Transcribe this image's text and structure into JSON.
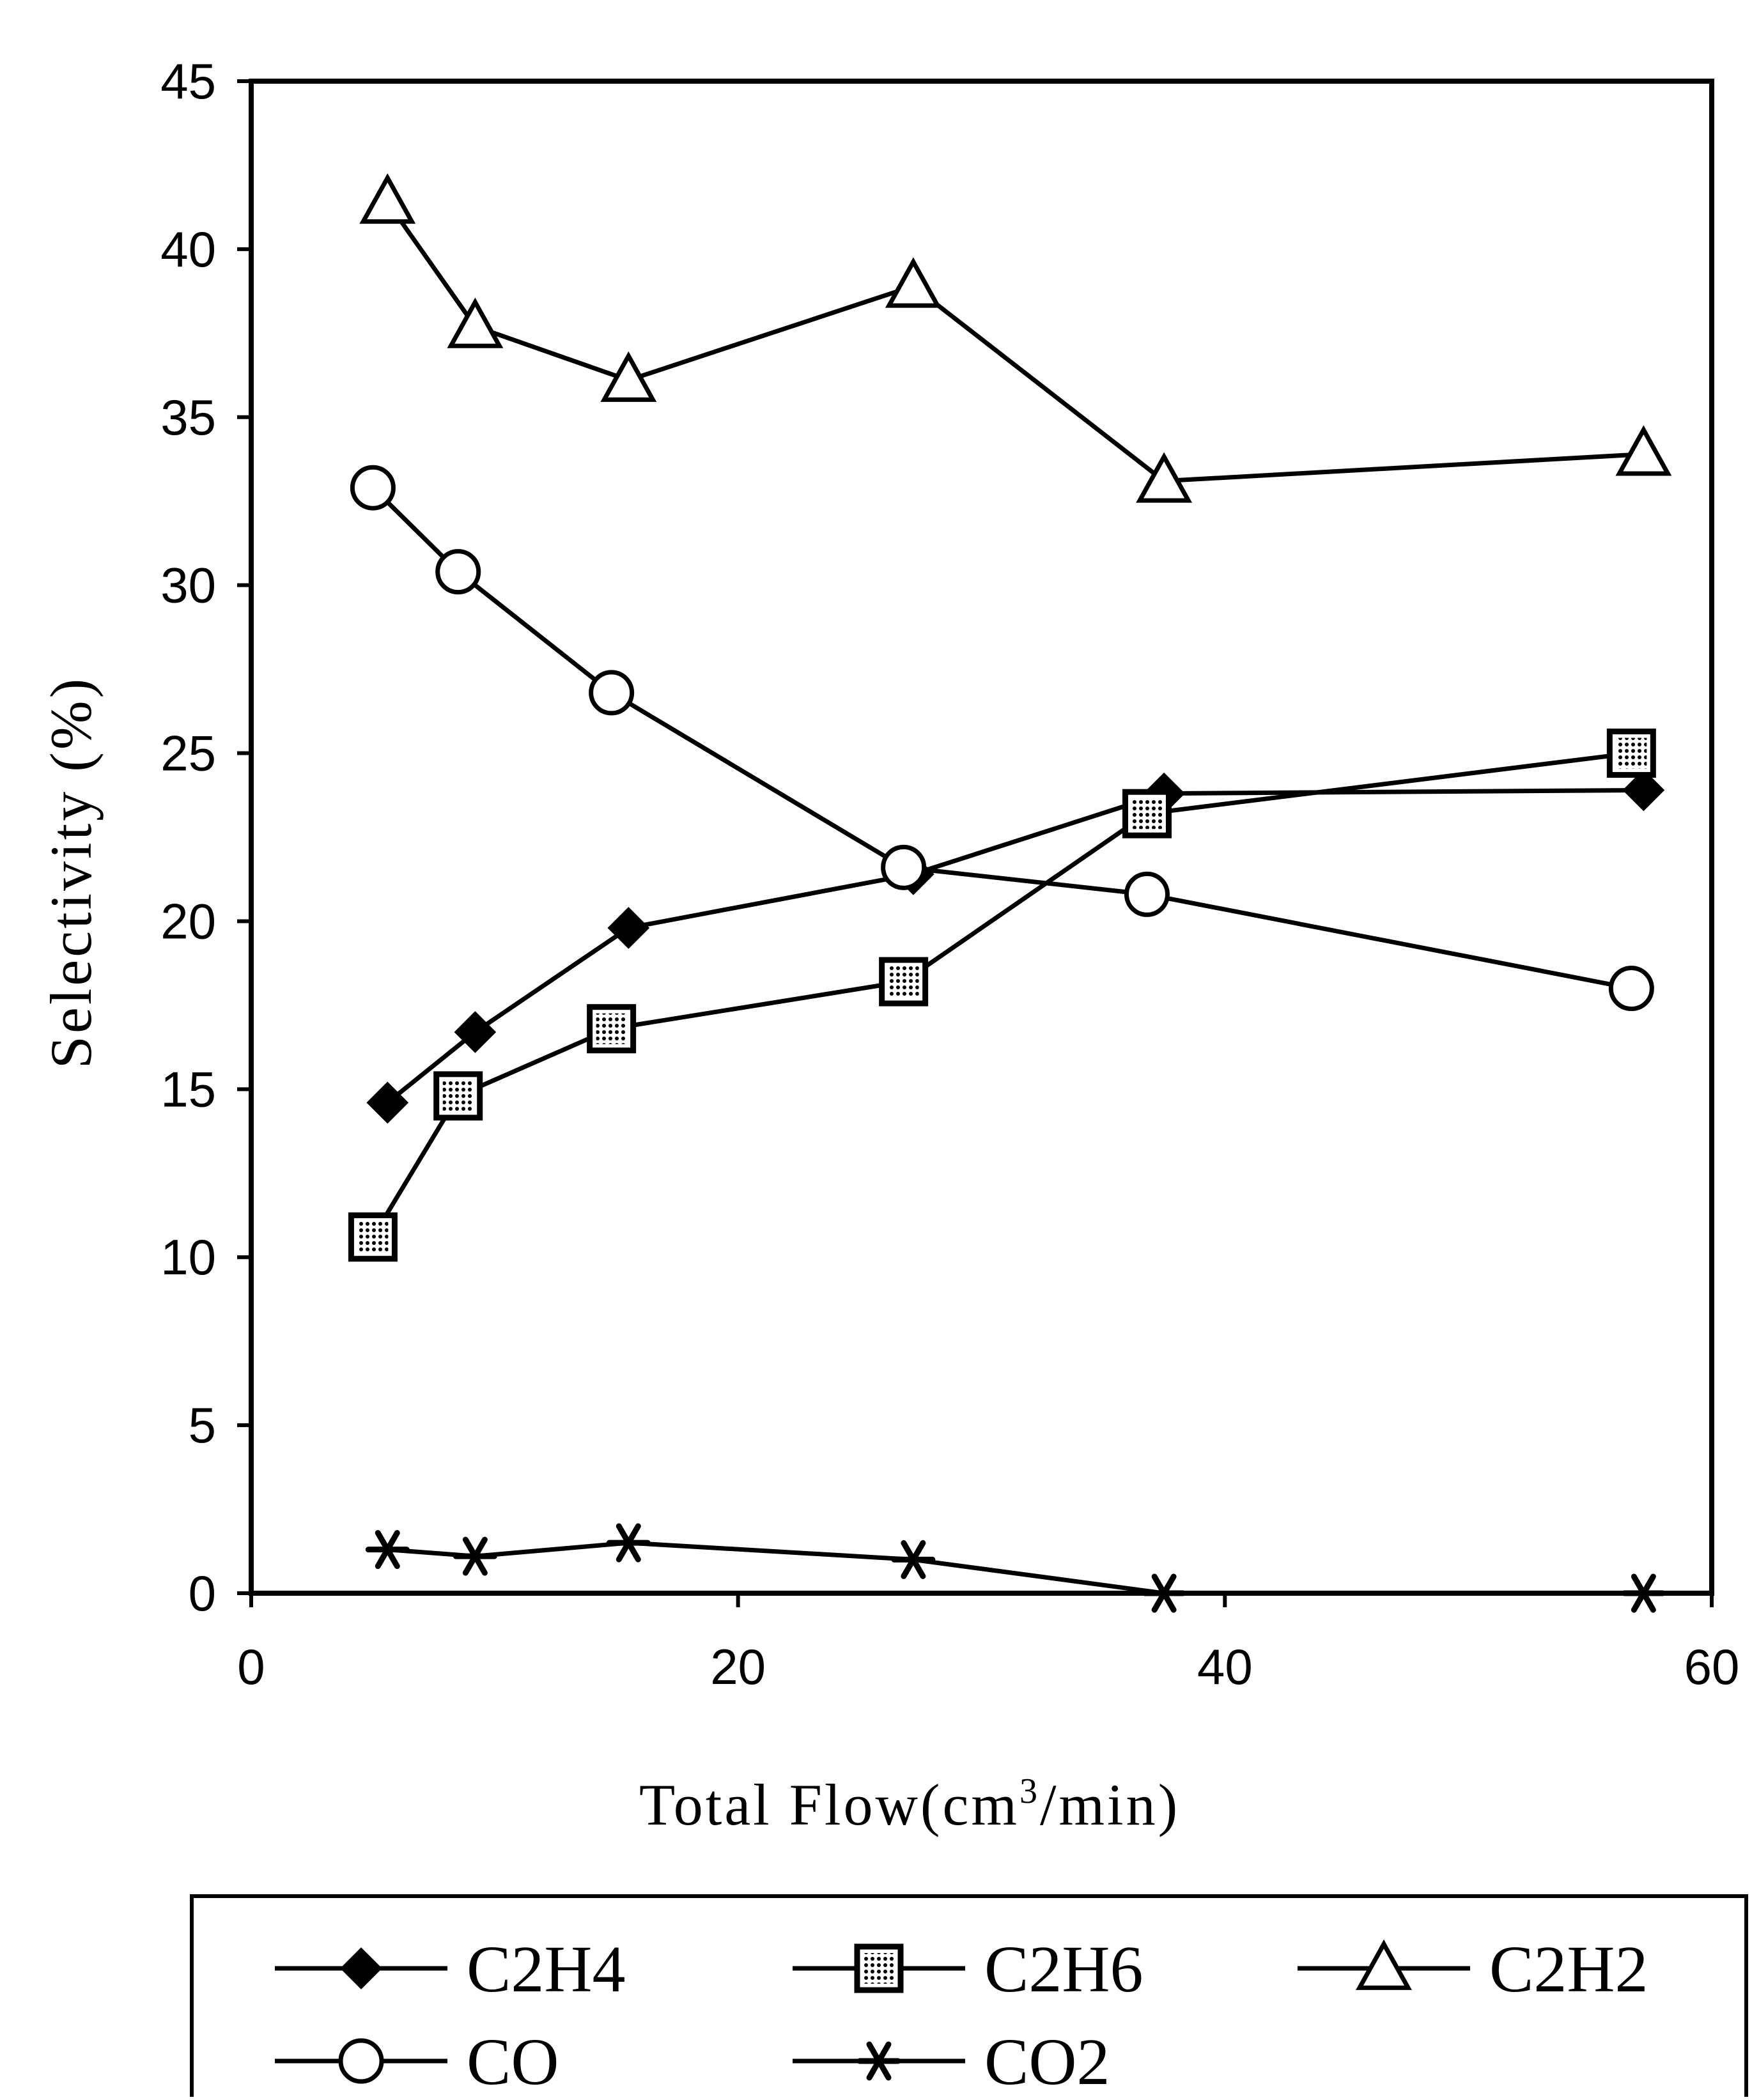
{
  "chart_data": {
    "type": "line",
    "title": "",
    "xlabel_main": "Total  Flow",
    "xlabel_unit_prefix": "(cm",
    "xlabel_unit_sup": "3",
    "xlabel_unit_suffix": "/min)",
    "ylabel": "Selectivity (%)",
    "xlim": [
      0,
      60
    ],
    "ylim": [
      0,
      45
    ],
    "x_ticks": [
      0,
      20,
      40,
      60
    ],
    "y_ticks": [
      0,
      5,
      10,
      15,
      20,
      25,
      30,
      35,
      40,
      45
    ],
    "x_tick_labels": [
      "0",
      "20",
      "40",
      "60"
    ],
    "y_tick_labels": [
      "0",
      "5",
      "10",
      "15",
      "20",
      "25",
      "30",
      "35",
      "40",
      "45"
    ],
    "grid": false,
    "legend_position": "bottom",
    "series": [
      {
        "name": "C2H4",
        "marker": "filled-diamond",
        "x": [
          5.6,
          9.2,
          15.5,
          27.2,
          37.5,
          57.2
        ],
        "y": [
          14.6,
          16.7,
          19.8,
          21.4,
          23.8,
          23.9
        ]
      },
      {
        "name": "C2H6",
        "marker": "dotted-square",
        "x": [
          5.0,
          8.5,
          14.8,
          26.8,
          36.8,
          56.7
        ],
        "y": [
          10.6,
          14.8,
          16.8,
          18.2,
          23.2,
          25.0
        ]
      },
      {
        "name": "C2H2",
        "marker": "open-triangle",
        "x": [
          5.6,
          9.2,
          15.5,
          27.2,
          37.5,
          57.2
        ],
        "y": [
          41.4,
          37.7,
          36.1,
          38.9,
          33.1,
          33.9
        ]
      },
      {
        "name": "CO",
        "marker": "open-circle",
        "x": [
          5.0,
          8.5,
          14.8,
          26.8,
          36.8,
          56.7
        ],
        "y": [
          32.9,
          30.4,
          26.8,
          21.6,
          20.8,
          18.0
        ]
      },
      {
        "name": "CO2",
        "marker": "star",
        "x": [
          5.6,
          9.2,
          15.5,
          27.2,
          37.5,
          57.2
        ],
        "y": [
          1.3,
          1.1,
          1.5,
          1.0,
          0.0,
          0.0
        ]
      }
    ]
  },
  "colors": {
    "ink": "#000000",
    "background": "#ffffff"
  }
}
